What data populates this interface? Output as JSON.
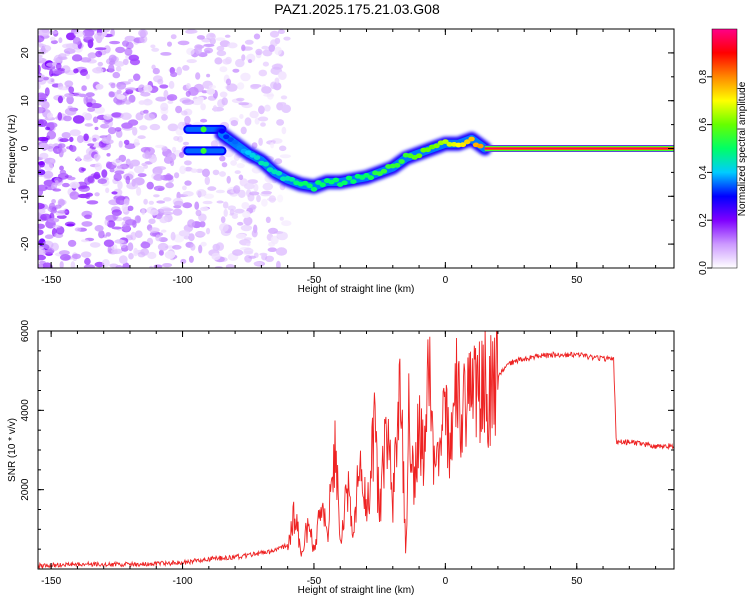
{
  "figure": {
    "title": "PAZ1.2025.175.21.03.G08"
  },
  "chart_data": [
    {
      "type": "heatmap",
      "xlabel": "Height of straight line (km)",
      "ylabel": "Frequency (Hz)",
      "xlim": [
        -155,
        87
      ],
      "ylim": [
        -25,
        25
      ],
      "x_ticks": [
        -150,
        -100,
        -50,
        0,
        50
      ],
      "y_ticks": [
        -20,
        -10,
        0,
        10,
        20
      ],
      "colorbar": {
        "label": "Normalized spectral amplitude",
        "range": [
          0,
          1
        ],
        "ticks": [
          0.0,
          0.2,
          0.4,
          0.6,
          0.8
        ],
        "colors": [
          "#ffffff",
          "#cc99ff",
          "#7f00ff",
          "#0000ff",
          "#00ccff",
          "#00ff66",
          "#66ff00",
          "#ffff00",
          "#ff8800",
          "#ff0000",
          "#ff0088"
        ]
      },
      "noise_region": {
        "x_range": [
          -155,
          -60
        ],
        "y_range": [
          -25,
          25
        ],
        "amplitude": 0.15
      },
      "branches": [
        {
          "x": [
            -98,
            -90,
            -85
          ],
          "y": [
            4,
            4,
            4
          ],
          "amplitude": 0.35
        },
        {
          "x": [
            -98,
            -90,
            -85
          ],
          "y": [
            -0.5,
            -0.5,
            -0.5
          ],
          "amplitude": 0.35
        }
      ],
      "ridge": {
        "x": [
          -85,
          -80,
          -75,
          -70,
          -65,
          -60,
          -55,
          -50,
          -45,
          -40,
          -35,
          -30,
          -25,
          -20,
          -15,
          -10,
          -5,
          0,
          5,
          10,
          15
        ],
        "y": [
          3,
          1,
          -1,
          -2.5,
          -5,
          -6.5,
          -7.5,
          -8,
          -7,
          -7,
          -6.5,
          -6,
          -5,
          -4,
          -2,
          -1,
          0,
          1,
          1,
          2,
          0
        ],
        "amplitude": [
          0.3,
          0.35,
          0.4,
          0.45,
          0.45,
          0.45,
          0.5,
          0.5,
          0.5,
          0.5,
          0.5,
          0.5,
          0.55,
          0.55,
          0.55,
          0.6,
          0.6,
          0.65,
          0.7,
          0.75,
          0.8
        ]
      },
      "carrier_line": {
        "x_range": [
          15,
          87
        ],
        "y": 0,
        "amplitude": 0.97
      }
    },
    {
      "type": "line",
      "xlabel": "Height of straight line (km)",
      "ylabel": "SNR (10 * v/v)",
      "xlim": [
        -155,
        87
      ],
      "ylim": [
        0,
        6000
      ],
      "x_ticks": [
        -150,
        -100,
        -50,
        0,
        50
      ],
      "y_ticks": [
        2000,
        4000,
        6000
      ],
      "color": "#ee2222",
      "series": [
        {
          "x": [
            -155,
            -140,
            -120,
            -100,
            -90,
            -80,
            -70,
            -65,
            -60,
            -57,
            -55,
            -52,
            -50,
            -47,
            -45,
            -42,
            -40,
            -37,
            -35,
            -32,
            -30,
            -27,
            -25,
            -22,
            -20,
            -17,
            -15,
            -14,
            -12,
            -10,
            -8,
            -6,
            -4,
            -2,
            0,
            2,
            4,
            6,
            7,
            8,
            10,
            12,
            14,
            16,
            18,
            20,
            25,
            30,
            40,
            50,
            60,
            64,
            65,
            66,
            70,
            80,
            87
          ],
          "y": [
            80,
            120,
            120,
            160,
            250,
            300,
            400,
            450,
            600,
            1500,
            300,
            1200,
            400,
            1800,
            700,
            3300,
            800,
            2000,
            900,
            3000,
            1200,
            3400,
            1400,
            3800,
            1600,
            5200,
            200,
            4000,
            2000,
            3500,
            3000,
            5000,
            2500,
            3000,
            4200,
            2800,
            5000,
            3200,
            5900,
            3800,
            5300,
            4200,
            5000,
            4600,
            4900,
            4900,
            5200,
            5300,
            5400,
            5400,
            5300,
            5300,
            3200,
            3200,
            3200,
            3100,
            3100
          ]
        }
      ]
    }
  ]
}
